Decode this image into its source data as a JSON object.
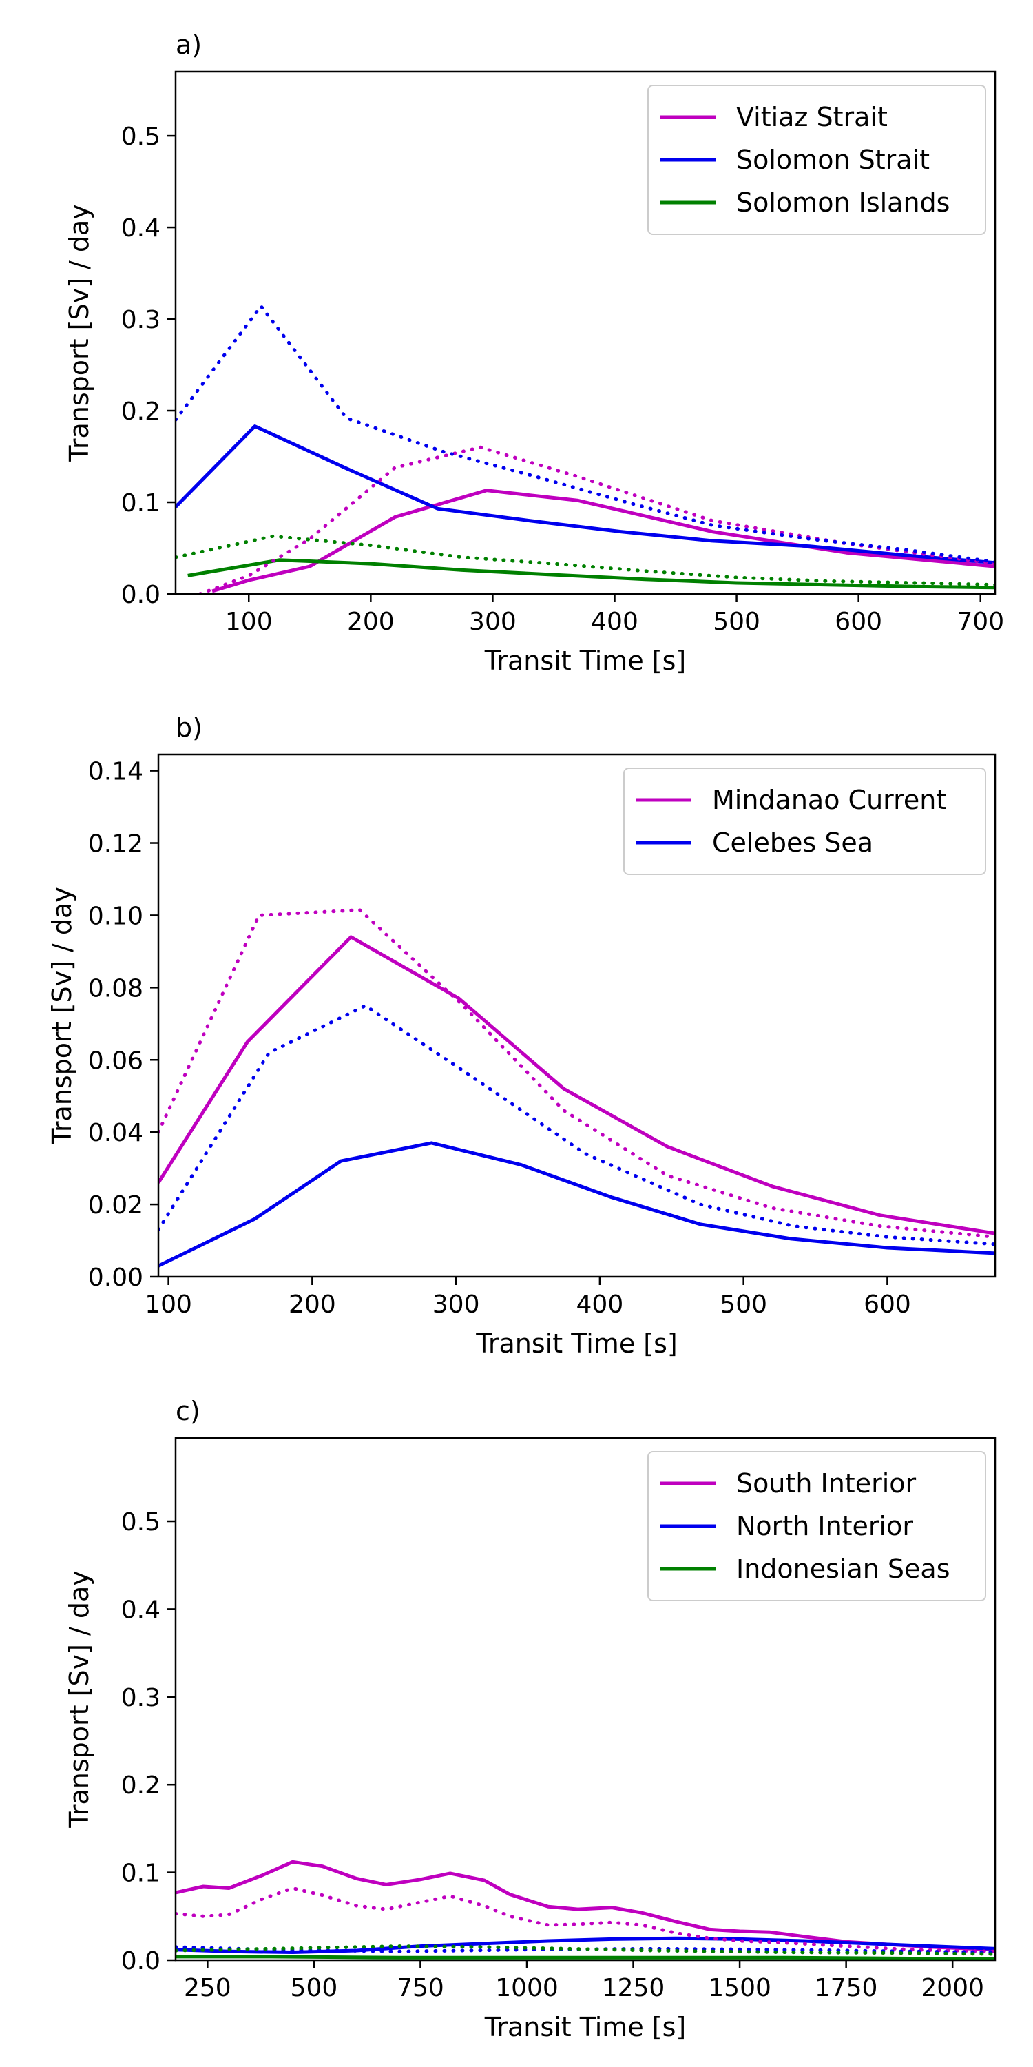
{
  "chart_data": [
    {
      "panel": "a)",
      "type": "line",
      "xlabel": "Transit Time [s]",
      "ylabel": "Transport [Sv] / day",
      "xlim": [
        40,
        712
      ],
      "ylim": [
        0,
        0.57
      ],
      "xticks": [
        100,
        200,
        300,
        400,
        500,
        600,
        700
      ],
      "yticks": [
        0.0,
        0.1,
        0.2,
        0.3,
        0.4,
        0.5
      ],
      "ytick_decimals": 1,
      "legend": "top-right",
      "series": [
        {
          "name": "Vitiaz Strait",
          "color": "#bf00bf",
          "style": "solid",
          "x": [
            70,
            100,
            150,
            220,
            295,
            370,
            480,
            590,
            712
          ],
          "y": [
            0.003,
            0.015,
            0.03,
            0.084,
            0.113,
            0.102,
            0.068,
            0.045,
            0.03
          ]
        },
        {
          "name": "Solomon Strait",
          "color": "#0000ee",
          "style": "solid",
          "x": [
            40,
            105,
            180,
            255,
            330,
            405,
            480,
            560,
            640,
            712
          ],
          "y": [
            0.095,
            0.183,
            0.137,
            0.093,
            0.08,
            0.068,
            0.058,
            0.052,
            0.042,
            0.034
          ]
        },
        {
          "name": "Solomon Islands",
          "color": "#008000",
          "style": "solid",
          "x": [
            50,
            125,
            200,
            275,
            350,
            425,
            500,
            575,
            650,
            712
          ],
          "y": [
            0.02,
            0.037,
            0.033,
            0.026,
            0.021,
            0.016,
            0.012,
            0.01,
            0.008,
            0.007
          ]
        },
        {
          "name": "",
          "color": "#bf00bf",
          "style": "dotted",
          "x": [
            60,
            100,
            150,
            220,
            290,
            370,
            480,
            590,
            712
          ],
          "y": [
            0.0,
            0.02,
            0.06,
            0.138,
            0.16,
            0.128,
            0.08,
            0.055,
            0.033
          ]
        },
        {
          "name": "",
          "color": "#0000ee",
          "style": "dotted",
          "x": [
            40,
            110,
            180,
            260,
            330,
            410,
            480,
            560,
            640,
            712
          ],
          "y": [
            0.19,
            0.314,
            0.192,
            0.155,
            0.13,
            0.1,
            0.075,
            0.06,
            0.048,
            0.035
          ]
        },
        {
          "name": "",
          "color": "#008000",
          "style": "dotted",
          "x": [
            40,
            120,
            200,
            275,
            350,
            425,
            500,
            575,
            650,
            712
          ],
          "y": [
            0.04,
            0.063,
            0.053,
            0.04,
            0.033,
            0.025,
            0.018,
            0.014,
            0.012,
            0.01
          ]
        }
      ]
    },
    {
      "panel": "b)",
      "type": "line",
      "xlabel": "Transit Time [s]",
      "ylabel": "Transport [Sv] / day",
      "xlim": [
        93,
        675
      ],
      "ylim": [
        0,
        0.1445
      ],
      "xticks": [
        100,
        200,
        300,
        400,
        500,
        600
      ],
      "yticks": [
        0.0,
        0.02,
        0.04,
        0.06,
        0.08,
        0.1,
        0.12,
        0.14
      ],
      "ytick_decimals": 2,
      "legend": "top-right",
      "series": [
        {
          "name": "Mindanao Current",
          "color": "#bf00bf",
          "style": "solid",
          "x": [
            93,
            155,
            227,
            302,
            375,
            447,
            520,
            595,
            675
          ],
          "y": [
            0.026,
            0.065,
            0.094,
            0.077,
            0.052,
            0.036,
            0.025,
            0.017,
            0.012
          ]
        },
        {
          "name": "Celebes Sea",
          "color": "#0000ee",
          "style": "solid",
          "x": [
            93,
            160,
            220,
            283,
            345,
            408,
            470,
            533,
            600,
            675
          ],
          "y": [
            0.003,
            0.016,
            0.032,
            0.037,
            0.031,
            0.022,
            0.0145,
            0.0105,
            0.008,
            0.0065
          ]
        },
        {
          "name": "",
          "color": "#bf00bf",
          "style": "dotted",
          "x": [
            93,
            163,
            233,
            305,
            375,
            447,
            520,
            595,
            675
          ],
          "y": [
            0.04,
            0.1,
            0.1015,
            0.075,
            0.046,
            0.028,
            0.019,
            0.014,
            0.011
          ]
        },
        {
          "name": "",
          "color": "#0000ee",
          "style": "dotted",
          "x": [
            93,
            170,
            237,
            305,
            390,
            470,
            535,
            600,
            675
          ],
          "y": [
            0.013,
            0.062,
            0.075,
            0.057,
            0.034,
            0.02,
            0.014,
            0.011,
            0.009
          ]
        }
      ]
    },
    {
      "panel": "c)",
      "type": "line",
      "xlabel": "Transit Time [s]",
      "ylabel": "Transport [Sv] / day",
      "xlim": [
        175,
        2100
      ],
      "ylim": [
        0,
        0.595
      ],
      "xticks": [
        250,
        500,
        750,
        1000,
        1250,
        1500,
        1750,
        2000
      ],
      "yticks": [
        0.0,
        0.1,
        0.2,
        0.3,
        0.4,
        0.5
      ],
      "ytick_decimals": 1,
      "legend": "top-right",
      "series": [
        {
          "name": "South Interior",
          "color": "#bf00bf",
          "style": "solid",
          "x": [
            175,
            240,
            300,
            380,
            450,
            520,
            600,
            670,
            750,
            820,
            900,
            960,
            1050,
            1120,
            1200,
            1270,
            1350,
            1430,
            1500,
            1570,
            1650,
            1750,
            1850,
            1950,
            2100
          ],
          "y": [
            0.077,
            0.084,
            0.082,
            0.097,
            0.112,
            0.107,
            0.093,
            0.086,
            0.092,
            0.099,
            0.091,
            0.075,
            0.061,
            0.058,
            0.06,
            0.054,
            0.044,
            0.035,
            0.033,
            0.032,
            0.027,
            0.021,
            0.018,
            0.015,
            0.012
          ]
        },
        {
          "name": "North Interior",
          "color": "#0000ee",
          "style": "solid",
          "x": [
            175,
            300,
            450,
            600,
            750,
            900,
            1050,
            1200,
            1350,
            1500,
            1650,
            1800,
            1950,
            2100
          ],
          "y": [
            0.012,
            0.01,
            0.009,
            0.011,
            0.016,
            0.019,
            0.022,
            0.024,
            0.025,
            0.024,
            0.022,
            0.019,
            0.016,
            0.013
          ]
        },
        {
          "name": "Indonesian Seas",
          "color": "#008000",
          "style": "solid",
          "x": [
            175,
            400,
            700,
            1000,
            1300,
            1600,
            1900,
            2100
          ],
          "y": [
            0.004,
            0.004,
            0.003,
            0.003,
            0.003,
            0.003,
            0.002,
            0.002
          ]
        },
        {
          "name": "",
          "color": "#bf00bf",
          "style": "dotted",
          "x": [
            175,
            240,
            300,
            380,
            450,
            520,
            600,
            670,
            750,
            820,
            900,
            960,
            1050,
            1120,
            1200,
            1270,
            1350,
            1430,
            1500,
            1600,
            1750,
            1900,
            2100
          ],
          "y": [
            0.053,
            0.05,
            0.052,
            0.07,
            0.082,
            0.074,
            0.062,
            0.058,
            0.066,
            0.073,
            0.062,
            0.05,
            0.04,
            0.041,
            0.043,
            0.04,
            0.031,
            0.025,
            0.022,
            0.02,
            0.016,
            0.012,
            0.01
          ]
        },
        {
          "name": "",
          "color": "#0000ee",
          "style": "dotted",
          "x": [
            175,
            400,
            700,
            1000,
            1300,
            1600,
            1900,
            2100
          ],
          "y": [
            0.015,
            0.012,
            0.01,
            0.012,
            0.013,
            0.012,
            0.01,
            0.009
          ]
        },
        {
          "name": "",
          "color": "#008000",
          "style": "dotted",
          "x": [
            175,
            400,
            700,
            900,
            1100,
            1300,
            1600,
            1900,
            2100
          ],
          "y": [
            0.011,
            0.013,
            0.016,
            0.015,
            0.013,
            0.011,
            0.009,
            0.008,
            0.007
          ]
        }
      ]
    }
  ]
}
